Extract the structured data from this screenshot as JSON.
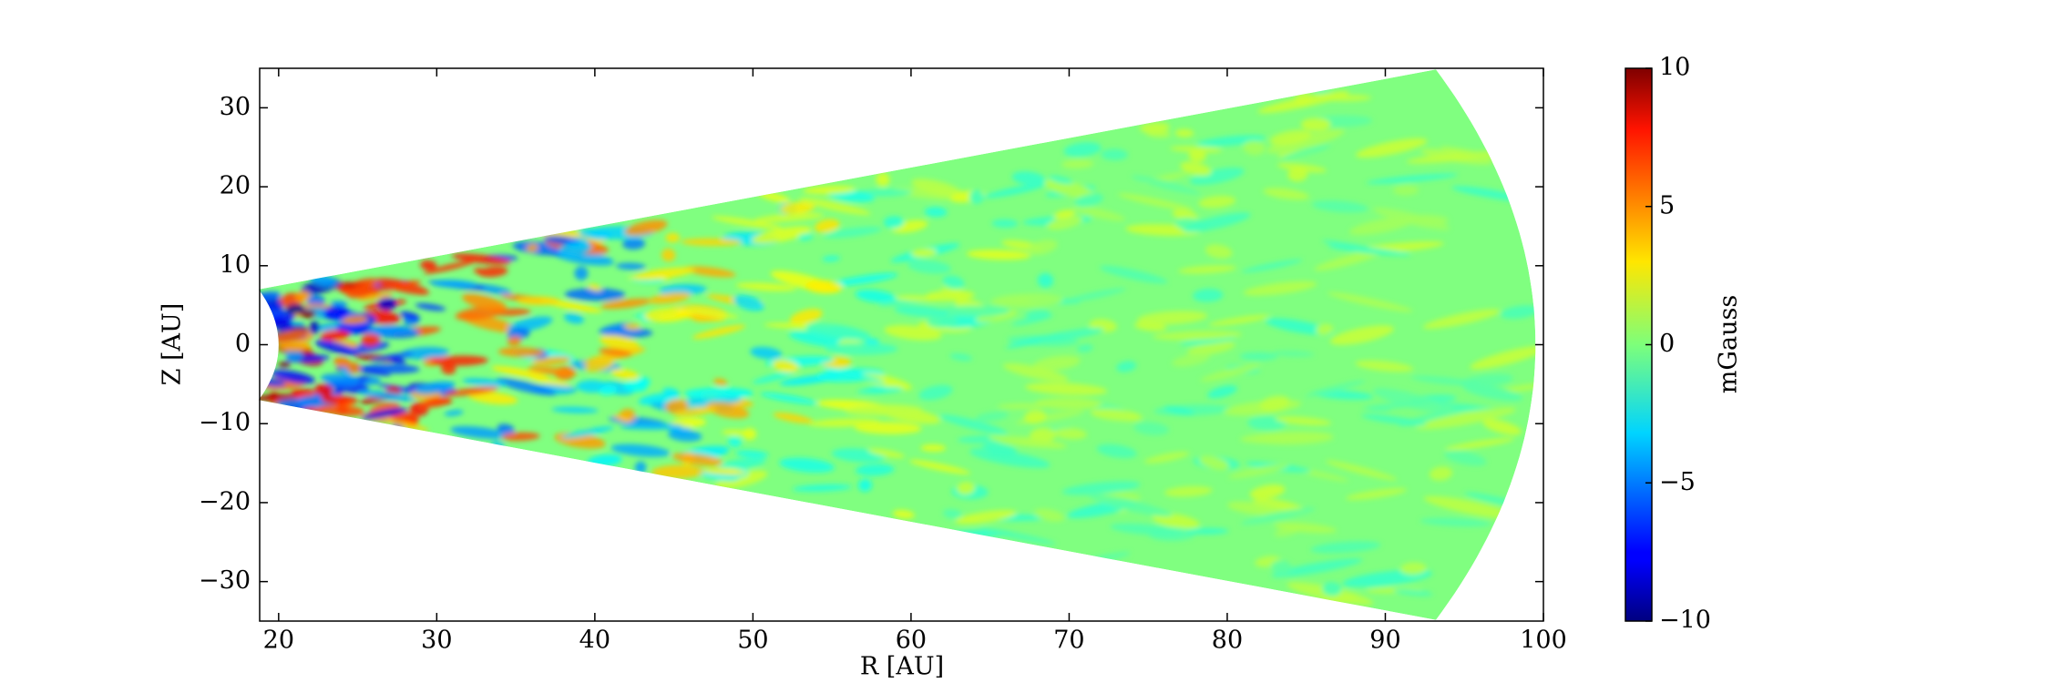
{
  "chart_data": {
    "type": "heatmap",
    "xlabel": "R [AU]",
    "ylabel": "Z [AU]",
    "xlim": [
      18.8,
      100
    ],
    "ylim": [
      -35,
      35
    ],
    "xticks": [
      20,
      30,
      40,
      50,
      60,
      70,
      80,
      90,
      100
    ],
    "yticks": [
      {
        "value": -30,
        "label": "−30"
      },
      {
        "value": -20,
        "label": "−20"
      },
      {
        "value": -10,
        "label": "−10"
      },
      0,
      10,
      20,
      30
    ],
    "colorbar": {
      "label": "mGauss",
      "clim": [
        -10,
        10
      ],
      "colormap": "jet",
      "ticks": [
        {
          "value": -10,
          "label": "−10"
        },
        {
          "value": -5,
          "label": "−5"
        },
        0,
        5,
        10
      ]
    }
  }
}
